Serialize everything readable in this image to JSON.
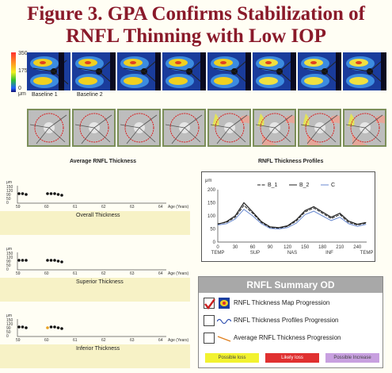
{
  "figure": {
    "title_line1": "Figure 3. GPA Confirms Stabilization of",
    "title_line2": "RNFL Thinning with Low IOP"
  },
  "scale": {
    "top": "350",
    "mid": "175",
    "bottom": "0 μm"
  },
  "maps": {
    "labels": [
      "Baseline 1",
      "Baseline 2"
    ]
  },
  "sections": {
    "average_title": "Average RNFL Thickness",
    "profiles_title": "RNFL Thickness Profiles"
  },
  "gpa_plots": [
    {
      "name": "Overall Thickness"
    },
    {
      "name": "Superior Thickness"
    },
    {
      "name": "Inferior Thickness"
    }
  ],
  "gpa_axis": {
    "y_unit": "μm",
    "y_ticks": [
      "150",
      "120",
      "90",
      "50",
      "0"
    ],
    "x_ticks": [
      "59",
      "60",
      "61",
      "62",
      "63",
      "64"
    ],
    "x_suffix": "Age (Years)"
  },
  "chart_data": {
    "type": "line",
    "ylabel": "μm",
    "ylim": [
      0,
      200
    ],
    "xlim": [
      0,
      256
    ],
    "x_ticks": [
      0,
      30,
      60,
      90,
      120,
      150,
      180,
      210,
      240
    ],
    "y_ticks": [
      0,
      50,
      100,
      150,
      200
    ],
    "x_region_labels": [
      "TEMP",
      "SUP",
      "NAS",
      "INF",
      "TEMP"
    ],
    "legend": [
      "B_1",
      "B_2",
      "C"
    ],
    "x": [
      0,
      15,
      30,
      45,
      60,
      75,
      90,
      105,
      120,
      135,
      150,
      165,
      180,
      195,
      210,
      225,
      240,
      255
    ],
    "series": [
      {
        "name": "B_1",
        "values": [
          70,
          75,
          95,
          140,
          110,
          75,
          55,
          52,
          60,
          80,
          115,
          130,
          110,
          90,
          105,
          75,
          65,
          72
        ]
      },
      {
        "name": "B_2",
        "values": [
          68,
          78,
          100,
          150,
          115,
          78,
          58,
          55,
          62,
          85,
          120,
          135,
          115,
          95,
          110,
          80,
          68,
          75
        ]
      },
      {
        "name": "C",
        "values": [
          65,
          70,
          88,
          125,
          100,
          70,
          52,
          50,
          55,
          72,
          105,
          118,
          100,
          82,
          95,
          70,
          60,
          68
        ]
      }
    ]
  },
  "summary": {
    "title": "RNFL Summary OD",
    "rows": [
      {
        "label": "RNFL Thickness Map Progression",
        "checked": true
      },
      {
        "label": "RNFL Thickness Profiles Progression",
        "checked": false
      },
      {
        "label": "Average RNFL Thickness Progression",
        "checked": false
      }
    ],
    "legend": [
      {
        "label": "Possible loss",
        "color": "#f2f230"
      },
      {
        "label": "Likely loss",
        "color": "#e03030"
      },
      {
        "label": "Possible Increase",
        "color": "#c8a0e0"
      }
    ]
  }
}
